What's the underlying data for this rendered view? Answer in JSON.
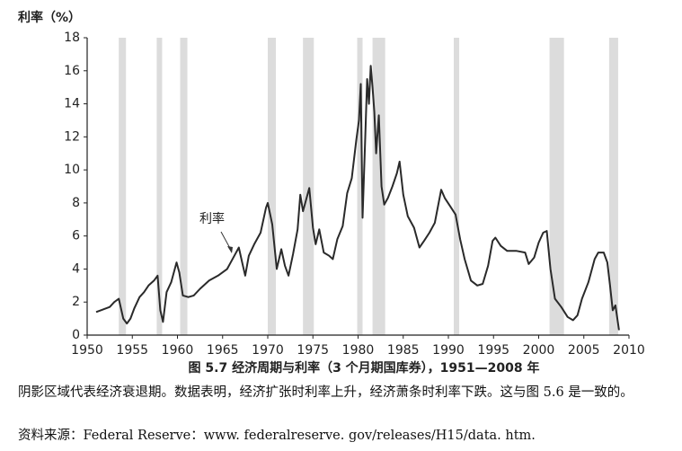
{
  "chart_data": {
    "type": "line",
    "title": "图 5.7  经济周期与利率（3 个月期国库券），1951—2008 年",
    "y_label": "利率（%）",
    "annotation": "利率",
    "xlim": [
      1950,
      2010
    ],
    "xticks": [
      1950,
      1955,
      1960,
      1965,
      1970,
      1975,
      1980,
      1985,
      1990,
      1995,
      2000,
      2005,
      2010
    ],
    "ylim": [
      0,
      18
    ],
    "yticks": [
      0,
      2,
      4,
      6,
      8,
      10,
      12,
      14,
      16,
      18
    ],
    "color": "#2a2a2a",
    "shade_color": "#dcdcdc",
    "recessions": [
      [
        1953.5,
        1954.3
      ],
      [
        1957.7,
        1958.3
      ],
      [
        1960.3,
        1961.1
      ],
      [
        1970.0,
        1970.9
      ],
      [
        1973.9,
        1975.1
      ],
      [
        1979.9,
        1980.5
      ],
      [
        1981.6,
        1983.0
      ],
      [
        1990.6,
        1991.2
      ],
      [
        2001.2,
        2002.8
      ],
      [
        2007.8,
        2008.8
      ]
    ],
    "x": [
      1951.0,
      1951.5,
      1952.0,
      1952.5,
      1953.0,
      1953.5,
      1954.0,
      1954.4,
      1954.8,
      1955.2,
      1955.8,
      1956.3,
      1956.8,
      1957.4,
      1957.8,
      1958.1,
      1958.4,
      1958.8,
      1959.3,
      1959.9,
      1960.2,
      1960.6,
      1961.2,
      1961.8,
      1962.5,
      1963.5,
      1964.5,
      1965.5,
      1966.3,
      1966.8,
      1967.2,
      1967.5,
      1967.9,
      1968.5,
      1969.2,
      1969.8,
      1970.0,
      1970.5,
      1971.0,
      1971.5,
      1971.9,
      1972.3,
      1972.8,
      1973.3,
      1973.6,
      1973.9,
      1974.3,
      1974.6,
      1975.0,
      1975.3,
      1975.7,
      1976.2,
      1976.8,
      1977.2,
      1977.7,
      1978.3,
      1978.8,
      1979.3,
      1979.8,
      1980.1,
      1980.3,
      1980.5,
      1980.8,
      1981.0,
      1981.2,
      1981.4,
      1981.6,
      1981.8,
      1982.0,
      1982.3,
      1982.6,
      1982.9,
      1983.3,
      1983.8,
      1984.3,
      1984.6,
      1985.0,
      1985.5,
      1986.2,
      1986.8,
      1987.3,
      1987.9,
      1988.5,
      1989.2,
      1989.6,
      1990.2,
      1990.8,
      1991.3,
      1991.8,
      1992.5,
      1993.2,
      1993.8,
      1994.4,
      1994.9,
      1995.2,
      1995.8,
      1996.5,
      1997.5,
      1998.5,
      1998.9,
      1999.5,
      2000.0,
      2000.5,
      2000.9,
      2001.3,
      2001.8,
      2002.5,
      2003.2,
      2003.8,
      2004.3,
      2004.8,
      2005.5,
      2006.2,
      2006.6,
      2007.2,
      2007.6,
      2007.9,
      2008.2,
      2008.5,
      2008.9
    ],
    "values": [
      1.4,
      1.5,
      1.6,
      1.7,
      2.0,
      2.2,
      1.0,
      0.7,
      1.0,
      1.6,
      2.3,
      2.6,
      3.0,
      3.3,
      3.6,
      1.5,
      0.8,
      2.6,
      3.2,
      4.4,
      3.8,
      2.4,
      2.3,
      2.4,
      2.8,
      3.3,
      3.6,
      4.0,
      4.8,
      5.3,
      4.3,
      3.6,
      4.8,
      5.5,
      6.2,
      7.7,
      8.0,
      6.7,
      4.0,
      5.2,
      4.2,
      3.6,
      4.9,
      6.4,
      8.5,
      7.5,
      8.3,
      8.9,
      6.5,
      5.5,
      6.4,
      5.0,
      4.8,
      4.6,
      5.8,
      6.6,
      8.6,
      9.5,
      11.8,
      13.0,
      15.2,
      7.1,
      12.0,
      15.5,
      14.0,
      16.3,
      15.0,
      13.5,
      11.0,
      13.3,
      9.0,
      7.9,
      8.3,
      9.0,
      9.8,
      10.5,
      8.5,
      7.2,
      6.5,
      5.3,
      5.7,
      6.2,
      6.8,
      8.8,
      8.3,
      7.8,
      7.3,
      5.8,
      4.6,
      3.3,
      3.0,
      3.1,
      4.2,
      5.7,
      5.9,
      5.4,
      5.1,
      5.1,
      5.0,
      4.3,
      4.7,
      5.6,
      6.2,
      6.3,
      4.0,
      2.2,
      1.7,
      1.1,
      0.9,
      1.2,
      2.2,
      3.2,
      4.6,
      5.0,
      5.0,
      4.4,
      3.0,
      1.5,
      1.8,
      0.3
    ]
  },
  "caption": "阴影区域代表经济衰退期。数据表明，经济扩张时利率上升，经济萧条时利率下跌。这与图 5.6 是一致的。",
  "source": "资料来源：Federal Reserve：www. federalreserve. gov/releases/H15/data. htm."
}
